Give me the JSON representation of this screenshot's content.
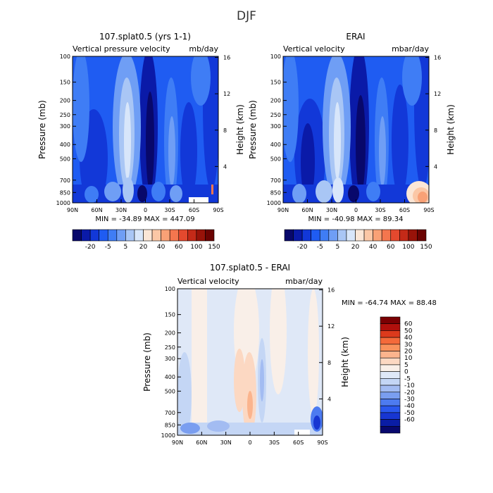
{
  "figure_title": "DJF",
  "chart_data": [
    {
      "type": "heatmap",
      "title": "107.splat0.5 (yrs 1-1)",
      "subtitle_left": "Vertical pressure velocity",
      "subtitle_right": "mb/day",
      "ylabel": "Pressure (mb)",
      "ylabel_right": "Height (km)",
      "x_ticks": [
        "90N",
        "60N",
        "30N",
        "0",
        "30S",
        "60S",
        "90S"
      ],
      "y_ticks": [
        "100",
        "150",
        "200",
        "250",
        "300",
        "400",
        "500",
        "700",
        "850",
        "1000"
      ],
      "y_ticks_right": [
        "16",
        "12",
        "8",
        "4"
      ],
      "stats": "MIN = -34.89   MAX = 447.09",
      "colorbar_labels": [
        "-20",
        "-5",
        "5",
        "20",
        "40",
        "60",
        "100",
        "150"
      ]
    },
    {
      "type": "heatmap",
      "title": "ERAI",
      "subtitle_left": "Vertical velocity",
      "subtitle_right": "mbar/day",
      "ylabel": "Pressure (mb)",
      "ylabel_right": "Height (km)",
      "x_ticks": [
        "90N",
        "60N",
        "30N",
        "0",
        "30S",
        "60S",
        "90S"
      ],
      "y_ticks": [
        "100",
        "150",
        "200",
        "250",
        "300",
        "400",
        "500",
        "700",
        "850",
        "1000"
      ],
      "y_ticks_right": [
        "16",
        "12",
        "8",
        "4"
      ],
      "stats": "MIN = -40.98   MAX = 89.34",
      "colorbar_labels": [
        "-20",
        "-5",
        "5",
        "20",
        "40",
        "60",
        "100",
        "150"
      ]
    },
    {
      "type": "heatmap",
      "title": "107.splat0.5 - ERAI",
      "subtitle_left": "Vertical velocity",
      "subtitle_right": "mbar/day",
      "ylabel": "Pressure (mb)",
      "ylabel_right": "Height (km)",
      "x_ticks": [
        "90N",
        "60N",
        "30N",
        "0",
        "30S",
        "60S",
        "90S"
      ],
      "y_ticks": [
        "100",
        "150",
        "200",
        "250",
        "300",
        "400",
        "500",
        "700",
        "850",
        "1000"
      ],
      "y_ticks_right": [
        "16",
        "12",
        "8",
        "4"
      ],
      "stats": "MIN = -64.74   MAX =  88.48",
      "colorbar_labels": [
        "60",
        "50",
        "40",
        "30",
        "20",
        "10",
        "5",
        "0",
        "-5",
        "-10",
        "-20",
        "-30",
        "-40",
        "-50",
        "-60"
      ]
    }
  ],
  "colors": {
    "scale_main": [
      "#08086b",
      "#0a1aa8",
      "#1238d8",
      "#1f5cf2",
      "#3f7df5",
      "#6f9ef5",
      "#a9c6f5",
      "#d8e6fa",
      "#fbe6d6",
      "#fbc7a6",
      "#f9a176",
      "#f4764e",
      "#e4492e",
      "#c42a18",
      "#981309",
      "#6b0302"
    ],
    "scale_diff": [
      "#7a0003",
      "#b0100c",
      "#dc3a1c",
      "#f46a3a",
      "#f9925c",
      "#fbb48d",
      "#fcd8c2",
      "#f9efe8",
      "#dfe8f7",
      "#c4d6f5",
      "#a3bcf2",
      "#7a9ef0",
      "#4d7bf0",
      "#2a58ee",
      "#1736d2",
      "#0a1da5",
      "#08086d"
    ]
  }
}
